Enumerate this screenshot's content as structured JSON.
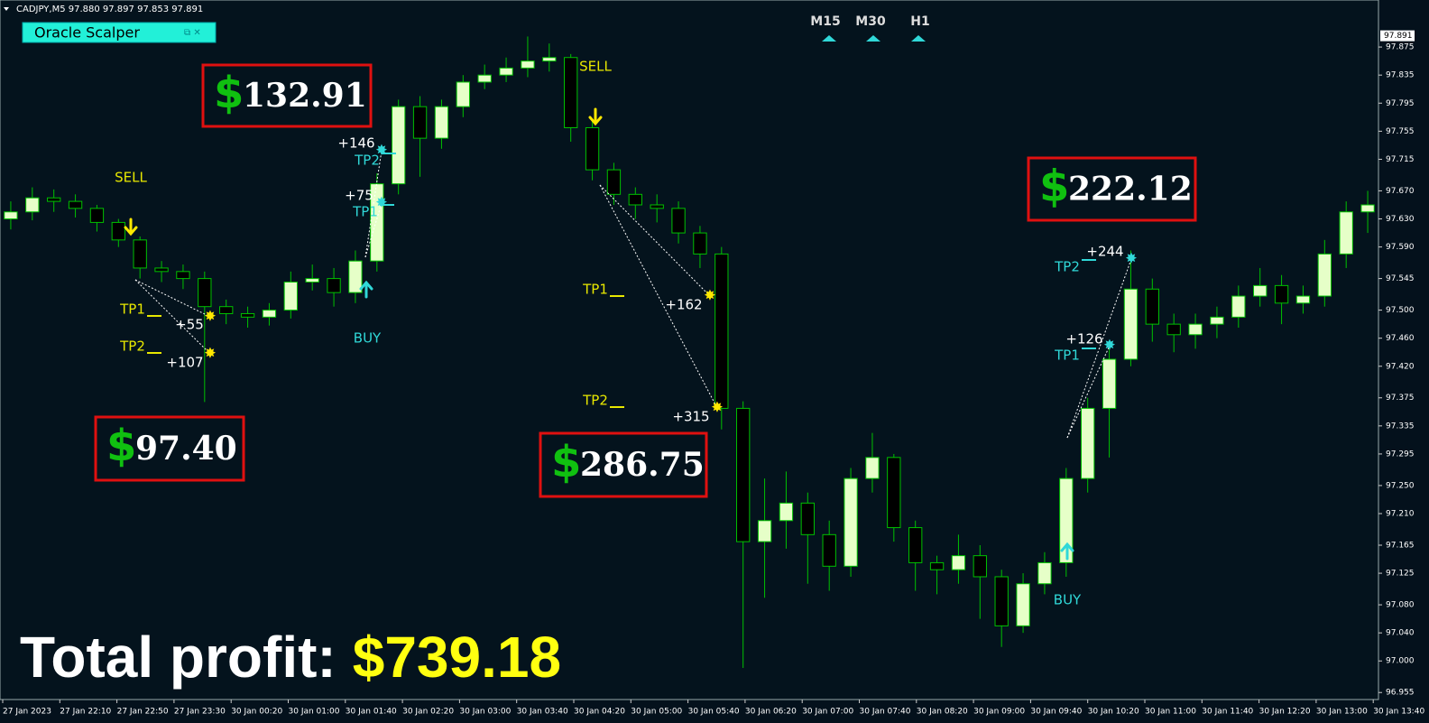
{
  "header": "CADJPY,M5  97.880 97.897 97.853 97.891",
  "panel_title": "Oracle Scalper",
  "timeframes": [
    "M15",
    "M30",
    "H1"
  ],
  "current_price": 97.891,
  "profits": [
    {
      "currency": "$",
      "amount": "132.91"
    },
    {
      "currency": "$",
      "amount": "97.40"
    },
    {
      "currency": "$",
      "amount": "286.75"
    },
    {
      "currency": "$",
      "amount": "222.12"
    }
  ],
  "total": {
    "label": "Total profit:",
    "amount": "$739.18"
  },
  "annotations": [
    {
      "text": "SELL",
      "color": "#e8e800"
    },
    {
      "text": "SELL",
      "color": "#e8e800"
    },
    {
      "text": "BUY",
      "color": "#30d8d8"
    },
    {
      "text": "BUY",
      "color": "#30d8d8"
    },
    {
      "text": "TP1",
      "color": "#e8e800"
    },
    {
      "text": "TP2",
      "color": "#e8e800"
    },
    {
      "text": "+55",
      "color": "#ffffff"
    },
    {
      "text": "+107",
      "color": "#ffffff"
    },
    {
      "text": "+146",
      "color": "#ffffff"
    },
    {
      "text": "TP2",
      "color": "#30d8d8"
    },
    {
      "text": "+75",
      "color": "#ffffff"
    },
    {
      "text": "TP1",
      "color": "#30d8d8"
    },
    {
      "text": "TP1",
      "color": "#e8e800"
    },
    {
      "text": "TP2",
      "color": "#e8e800"
    },
    {
      "text": "+162",
      "color": "#ffffff"
    },
    {
      "text": "+315",
      "color": "#ffffff"
    },
    {
      "text": "TP2",
      "color": "#30d8d8"
    },
    {
      "text": "+244",
      "color": "#ffffff"
    },
    {
      "text": "+126",
      "color": "#ffffff"
    },
    {
      "text": "TP1",
      "color": "#30d8d8"
    }
  ],
  "chart_data": {
    "type": "candlestick",
    "color_up": "#e6ffc8",
    "color_down": "#000000",
    "color_outline": "#00c000",
    "ylim": [
      96.945,
      97.942
    ],
    "yticks": [
      97.875,
      97.835,
      97.795,
      97.755,
      97.715,
      {
        "value": 97.67,
        "label": "97.670"
      },
      {
        "value": 97.63,
        "label": "97.630"
      },
      {
        "value": 97.59,
        "label": "97.590"
      },
      97.545,
      {
        "value": 97.5,
        "label": "97.500"
      },
      {
        "value": 97.46,
        "label": "97.460"
      },
      {
        "value": 97.42,
        "label": "97.420"
      },
      97.375,
      97.335,
      97.295,
      {
        "value": 97.25,
        "label": "97.250"
      },
      {
        "value": 97.21,
        "label": "97.210"
      },
      97.165,
      97.125,
      {
        "value": 97.08,
        "label": "97.080"
      },
      {
        "value": 97.04,
        "label": "97.040"
      },
      {
        "value": 97.0,
        "label": "97.000"
      },
      96.955
    ],
    "xtick_labels": [
      "27 Jan 2023",
      "27 Jan 22:10",
      "27 Jan 22:50",
      "27 Jan 23:30",
      "30 Jan 00:20",
      "30 Jan 01:00",
      "30 Jan 01:40",
      "30 Jan 02:20",
      "30 Jan 03:00",
      "30 Jan 03:40",
      "30 Jan 04:20",
      "30 Jan 05:00",
      "30 Jan 05:40",
      "30 Jan 06:20",
      "30 Jan 07:00",
      "30 Jan 07:40",
      "30 Jan 08:20",
      "30 Jan 09:00",
      "30 Jan 09:40",
      "30 Jan 10:20",
      "30 Jan 11:00",
      "30 Jan 11:40",
      "30 Jan 12:20",
      "30 Jan 13:00",
      "30 Jan 13:40"
    ],
    "open": [
      97.63,
      97.64,
      97.66,
      97.655,
      97.645,
      97.625,
      97.6,
      97.56,
      97.555,
      97.545,
      97.505,
      97.495,
      97.49,
      97.5,
      97.54,
      97.545,
      97.525,
      97.57,
      97.68,
      97.79,
      97.745,
      97.79,
      97.825,
      97.835,
      97.845,
      97.855,
      97.86,
      97.76,
      97.7,
      97.665,
      97.65,
      97.645,
      97.61,
      97.58,
      97.36,
      97.17,
      97.2,
      97.225,
      97.18,
      97.135,
      97.26,
      97.29,
      97.19,
      97.14,
      97.13,
      97.15,
      97.12,
      97.05,
      97.11,
      97.14,
      97.26,
      97.36,
      97.43,
      97.53,
      97.48,
      97.465,
      97.48,
      97.49,
      97.52,
      97.535,
      97.51,
      97.52,
      97.58,
      97.64
    ],
    "high": [
      97.655,
      97.675,
      97.672,
      97.665,
      97.65,
      97.63,
      97.605,
      97.57,
      97.565,
      97.555,
      97.515,
      97.505,
      97.51,
      97.555,
      97.565,
      97.56,
      97.585,
      97.695,
      97.8,
      97.805,
      97.8,
      97.835,
      97.85,
      97.86,
      97.89,
      97.88,
      97.865,
      97.77,
      97.71,
      97.675,
      97.665,
      97.655,
      97.62,
      97.59,
      97.37,
      97.26,
      97.27,
      97.24,
      97.2,
      97.275,
      97.325,
      97.295,
      97.2,
      97.15,
      97.18,
      97.165,
      97.13,
      97.125,
      97.155,
      97.275,
      97.375,
      97.445,
      97.585,
      97.545,
      97.495,
      97.495,
      97.505,
      97.535,
      97.56,
      97.55,
      97.535,
      97.6,
      97.655,
      97.67
    ],
    "low": [
      97.615,
      97.628,
      97.64,
      97.632,
      97.612,
      97.59,
      97.545,
      97.54,
      97.53,
      97.369,
      97.48,
      97.475,
      97.478,
      97.488,
      97.528,
      97.505,
      97.51,
      97.555,
      97.665,
      97.69,
      97.73,
      97.775,
      97.815,
      97.825,
      97.832,
      97.84,
      97.74,
      97.685,
      97.65,
      97.63,
      97.625,
      97.595,
      97.56,
      97.33,
      96.99,
      97.09,
      97.16,
      97.11,
      97.1,
      97.12,
      97.24,
      97.17,
      97.1,
      97.095,
      97.11,
      97.06,
      97.02,
      97.04,
      97.095,
      97.12,
      97.24,
      97.29,
      97.42,
      97.455,
      97.44,
      97.445,
      97.46,
      97.475,
      97.505,
      97.48,
      97.495,
      97.505,
      97.56,
      97.61
    ],
    "close": [
      97.64,
      97.66,
      97.655,
      97.645,
      97.625,
      97.6,
      97.56,
      97.555,
      97.545,
      97.505,
      97.495,
      97.49,
      97.5,
      97.54,
      97.545,
      97.525,
      97.57,
      97.68,
      97.79,
      97.745,
      97.79,
      97.825,
      97.835,
      97.845,
      97.855,
      97.86,
      97.76,
      97.7,
      97.665,
      97.65,
      97.645,
      97.61,
      97.58,
      97.36,
      97.17,
      97.2,
      97.225,
      97.18,
      97.135,
      97.26,
      97.29,
      97.19,
      97.14,
      97.13,
      97.15,
      97.12,
      97.05,
      97.11,
      97.14,
      97.26,
      97.36,
      97.43,
      97.53,
      97.48,
      97.465,
      97.48,
      97.49,
      97.52,
      97.535,
      97.51,
      97.52,
      97.58,
      97.64,
      97.65
    ]
  }
}
